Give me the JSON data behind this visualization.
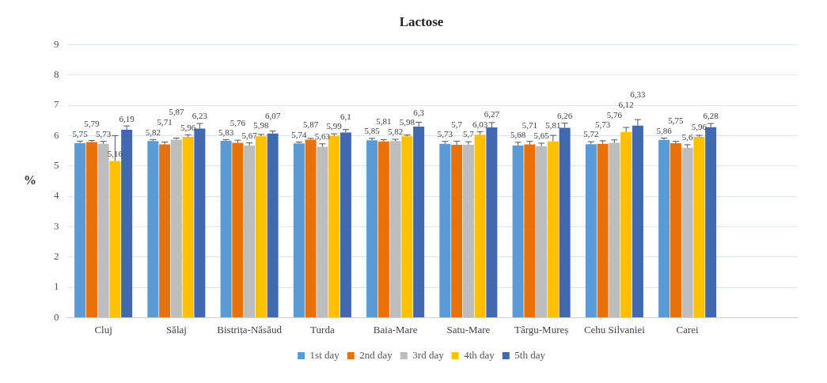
{
  "chart_data": {
    "type": "bar",
    "title": "Lactose",
    "ylabel": "%",
    "categories": [
      "Cluj",
      "Sălaj",
      "Bistrița-Năsăud",
      "Turda",
      "Baia-Mare",
      "Satu-Mare",
      "Târgu-Mureș",
      "Cehu Silvaniei",
      "Carei",
      null
    ],
    "series": [
      {
        "name": "1st day",
        "color": "#5b9bd5",
        "values": [
          5.75,
          5.82,
          5.83,
          5.74,
          5.85,
          5.73,
          5.68,
          5.72,
          5.86,
          null
        ],
        "value_labels": [
          "5,75",
          "5,82",
          "5,83",
          "5,74",
          "5,85",
          "5,73",
          "5,68",
          "5,72",
          "5,86",
          null
        ],
        "errors": [
          [
            5.75,
            5.82
          ],
          [
            5.82,
            5.87
          ],
          [
            5.83,
            5.87
          ],
          [
            5.74,
            5.79
          ],
          [
            5.85,
            5.91
          ],
          [
            5.73,
            5.81
          ],
          [
            5.68,
            5.78
          ],
          [
            5.72,
            5.8
          ],
          [
            5.86,
            5.92
          ],
          null
        ]
      },
      {
        "name": "2nd day",
        "color": "#e97109",
        "values": [
          5.79,
          5.71,
          5.76,
          5.87,
          5.81,
          5.7,
          5.71,
          5.73,
          5.75,
          null
        ],
        "value_labels": [
          "5,79",
          "5,71",
          "5,76",
          "5,87",
          "5,81",
          "5,7",
          "5,71",
          "5,73",
          "5,75",
          null
        ],
        "errors": [
          [
            5.79,
            5.84
          ],
          [
            5.71,
            5.79
          ],
          [
            5.76,
            5.85
          ],
          [
            5.87,
            5.91
          ],
          [
            5.81,
            5.87
          ],
          [
            5.7,
            5.82
          ],
          [
            5.71,
            5.81
          ],
          [
            5.73,
            5.83
          ],
          [
            5.75,
            5.81
          ],
          null
        ]
      },
      {
        "name": "3rd day",
        "color": "#bdbdbd",
        "values": [
          5.73,
          5.87,
          5.67,
          5.63,
          5.82,
          5.7,
          5.65,
          5.76,
          5.6,
          null
        ],
        "value_labels": [
          "5,73",
          "5,87",
          "5,67",
          "5,63",
          "5,82",
          "5,7",
          "5,65",
          "5,76",
          "5,6",
          null
        ],
        "errors": [
          [
            5.73,
            5.81
          ],
          [
            5.87,
            5.92
          ],
          [
            5.67,
            5.76
          ],
          [
            5.63,
            5.73
          ],
          [
            5.82,
            5.88
          ],
          [
            5.7,
            5.8
          ],
          [
            5.65,
            5.75
          ],
          [
            5.76,
            5.86
          ],
          [
            5.6,
            5.7
          ],
          null
        ]
      },
      {
        "name": "4th day",
        "color": "#ffc000",
        "values": [
          5.16,
          5.96,
          5.98,
          5.99,
          5.98,
          6.03,
          5.81,
          6.12,
          5.96,
          null
        ],
        "value_labels": [
          "5,16",
          "5,96",
          "5,98",
          "5,99",
          "5,98",
          "6,03",
          "5,81",
          "6,12",
          "5,96",
          null
        ],
        "errors": [
          [
            5.16,
            6.0
          ],
          [
            5.96,
            6.03
          ],
          [
            5.98,
            6.04
          ],
          [
            5.99,
            6.06
          ],
          [
            5.98,
            6.02
          ],
          [
            6.03,
            6.13
          ],
          [
            5.81,
            6.01
          ],
          [
            6.12,
            6.27
          ],
          [
            5.96,
            6.01
          ],
          null
        ]
      },
      {
        "name": "5th day",
        "color": "#4169b0",
        "values": [
          6.19,
          6.23,
          6.07,
          6.1,
          6.3,
          6.27,
          6.26,
          6.33,
          6.28,
          null
        ],
        "value_labels": [
          "6,19",
          "6,23",
          "6,07",
          "6,1",
          "6,3",
          "6,27",
          "6,26",
          "6,33",
          "6,28",
          null
        ],
        "errors": [
          [
            6.19,
            6.32
          ],
          [
            6.23,
            6.4
          ],
          [
            6.07,
            6.15
          ],
          [
            6.1,
            6.2
          ],
          [
            6.3,
            6.44
          ],
          [
            6.27,
            6.43
          ],
          [
            6.26,
            6.41
          ],
          [
            6.33,
            6.53
          ],
          [
            6.28,
            6.4
          ],
          null
        ]
      }
    ],
    "ylim": [
      0,
      9
    ],
    "yticks": [
      0,
      1,
      2,
      3,
      4,
      5,
      6,
      7,
      8,
      9
    ],
    "grid": "y",
    "legend": "bottom"
  }
}
